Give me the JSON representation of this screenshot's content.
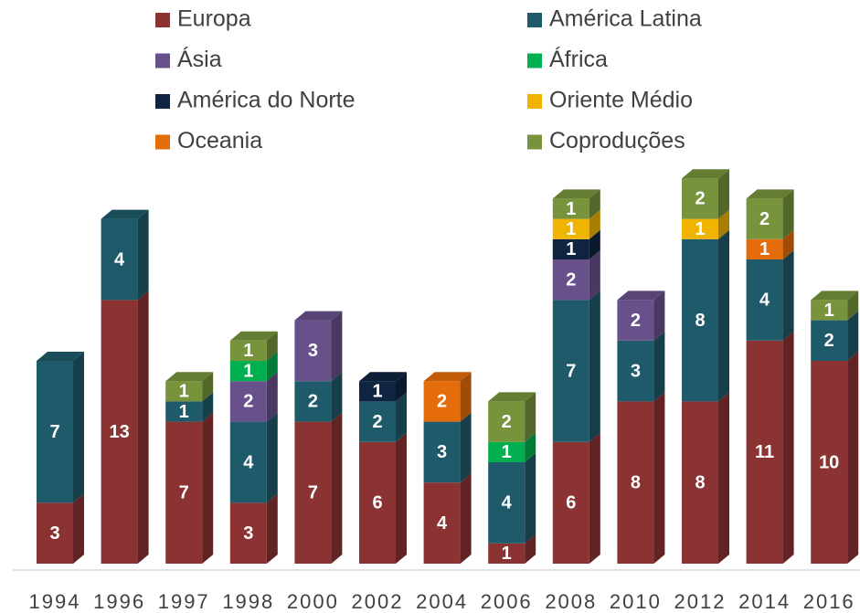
{
  "chart_data": {
    "type": "bar3d_stacked",
    "categories": [
      "1994",
      "1996",
      "1997",
      "1998",
      "2000",
      "2002",
      "2004",
      "2006",
      "2008",
      "2010",
      "2012",
      "2014",
      "2016"
    ],
    "series": [
      {
        "name": "Europa",
        "color": "#8b3232",
        "values": [
          3,
          13,
          7,
          3,
          7,
          6,
          4,
          1,
          6,
          8,
          8,
          11,
          10
        ]
      },
      {
        "name": "América Latina",
        "color": "#1f5a6a",
        "values": [
          7,
          4,
          1,
          4,
          2,
          2,
          3,
          4,
          7,
          3,
          8,
          4,
          2
        ]
      },
      {
        "name": "Ásia",
        "color": "#68508a",
        "values": [
          null,
          null,
          null,
          2,
          3,
          null,
          null,
          null,
          2,
          2,
          null,
          null,
          null
        ]
      },
      {
        "name": "África",
        "color": "#00b050",
        "values": [
          null,
          null,
          null,
          1,
          null,
          null,
          null,
          1,
          null,
          null,
          null,
          null,
          null
        ]
      },
      {
        "name": "América do Norte",
        "color": "#0f2440",
        "values": [
          null,
          null,
          null,
          null,
          null,
          1,
          null,
          null,
          1,
          null,
          null,
          null,
          null
        ]
      },
      {
        "name": "Oriente Médio",
        "color": "#f0b400",
        "values": [
          null,
          null,
          null,
          null,
          null,
          null,
          null,
          null,
          1,
          null,
          1,
          null,
          null
        ]
      },
      {
        "name": "Oceania",
        "color": "#e46c0a",
        "values": [
          null,
          null,
          null,
          null,
          null,
          null,
          2,
          null,
          null,
          null,
          null,
          1,
          null
        ]
      },
      {
        "name": "Coproduções",
        "color": "#77933c",
        "values": [
          null,
          null,
          1,
          1,
          null,
          null,
          null,
          2,
          1,
          null,
          2,
          2,
          1
        ]
      }
    ],
    "legend": "top"
  }
}
